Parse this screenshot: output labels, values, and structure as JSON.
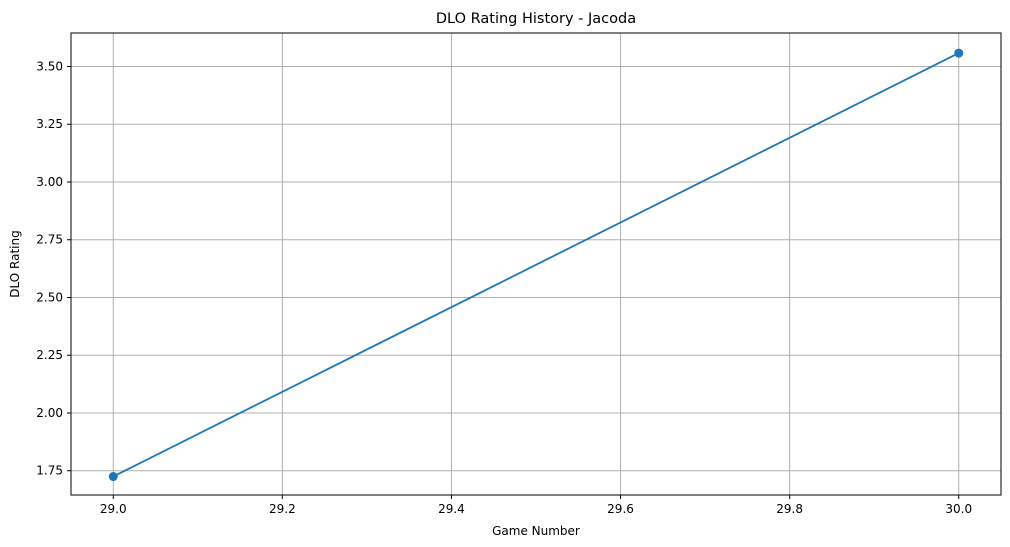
{
  "chart_data": {
    "type": "line",
    "title": "DLO Rating History - Jacoda",
    "xlabel": "Game Number",
    "ylabel": "DLO Rating",
    "xlim": [
      28.95,
      30.05
    ],
    "ylim": [
      1.645,
      3.645
    ],
    "x_ticks": [
      29.0,
      29.2,
      29.4,
      29.6,
      29.8,
      30.0
    ],
    "x_tick_labels": [
      "29.0",
      "29.2",
      "29.4",
      "29.6",
      "29.8",
      "30.0"
    ],
    "y_ticks": [
      1.75,
      2.0,
      2.25,
      2.5,
      2.75,
      3.0,
      3.25,
      3.5
    ],
    "y_tick_labels": [
      "1.75",
      "2.00",
      "2.25",
      "2.50",
      "2.75",
      "3.00",
      "3.25",
      "3.50"
    ],
    "grid": true,
    "series": [
      {
        "x": [
          29,
          30
        ],
        "y": [
          1.725,
          3.558
        ],
        "color": "#1f77b4",
        "marker": "circle"
      }
    ]
  }
}
